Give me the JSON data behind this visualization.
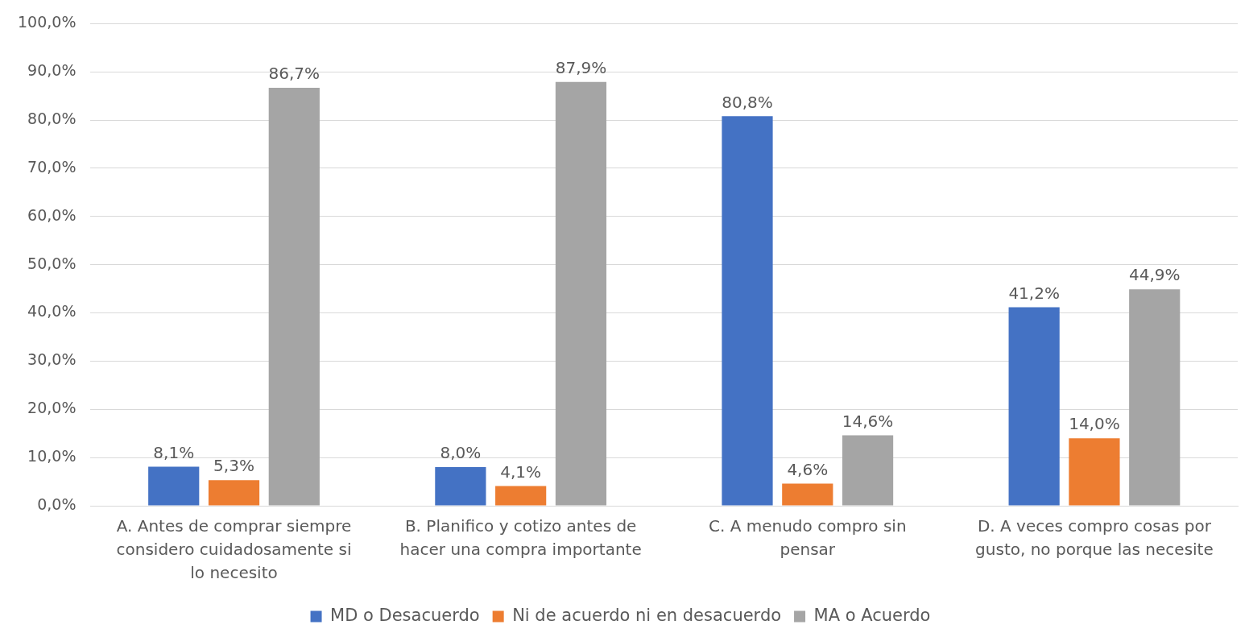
{
  "chart_data": {
    "type": "bar",
    "categories": [
      "A. Antes de comprar siempre considero cuidadosamente si lo necesito",
      "B. Planifico y cotizo antes de hacer una compra importante",
      "C. A menudo compro sin pensar",
      "D. A veces compro cosas por gusto, no porque las necesite"
    ],
    "series": [
      {
        "name": "MD o Desacuerdo",
        "color": "#4472c4",
        "values": [
          8.1,
          8.0,
          80.8,
          41.2
        ],
        "value_labels": [
          "8,1%",
          "8,0%",
          "80,8%",
          "41,2%"
        ]
      },
      {
        "name": "Ni de acuerdo ni en desacuerdo",
        "color": "#ed7d31",
        "values": [
          5.3,
          4.1,
          4.6,
          14.0
        ],
        "value_labels": [
          "5,3%",
          "4,1%",
          "4,6%",
          "14,0%"
        ]
      },
      {
        "name": "MA o Acuerdo",
        "color": "#a5a5a5",
        "values": [
          86.7,
          87.9,
          14.6,
          44.9
        ],
        "value_labels": [
          "86,7%",
          "87,9%",
          "14,6%",
          "44,9%"
        ]
      }
    ],
    "ylim": [
      0,
      100
    ],
    "yticks": [
      {
        "value": 0,
        "label": "0,0%"
      },
      {
        "value": 10,
        "label": "10,0%"
      },
      {
        "value": 20,
        "label": "20,0%"
      },
      {
        "value": 30,
        "label": "30,0%"
      },
      {
        "value": 40,
        "label": "40,0%"
      },
      {
        "value": 50,
        "label": "50,0%"
      },
      {
        "value": 60,
        "label": "60,0%"
      },
      {
        "value": 70,
        "label": "70,0%"
      },
      {
        "value": 80,
        "label": "80,0%"
      },
      {
        "value": 90,
        "label": "90,0%"
      },
      {
        "value": 100,
        "label": "100,0%"
      }
    ],
    "grid": "y",
    "legend": "bottom"
  }
}
